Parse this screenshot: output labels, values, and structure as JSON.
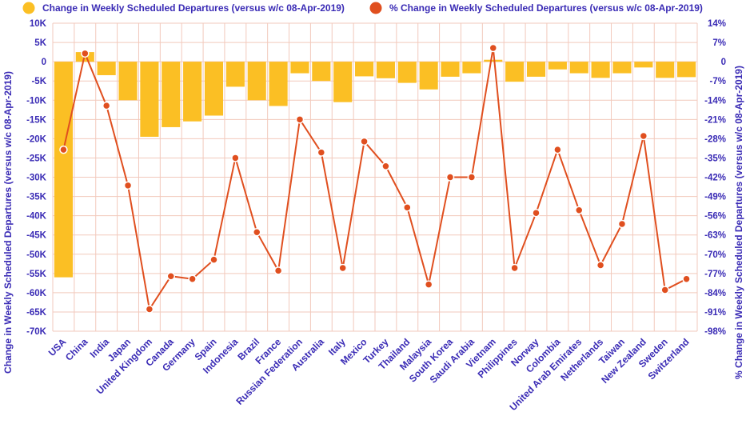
{
  "chart_data": {
    "type": "bar+line",
    "categories": [
      "USA",
      "China",
      "India",
      "Japan",
      "United Kingdom",
      "Canada",
      "Germany",
      "Spain",
      "Indonesia",
      "Brazil",
      "France",
      "Russian Federation",
      "Australia",
      "Italy",
      "Mexico",
      "Turkey",
      "Thailand",
      "Malaysia",
      "South Korea",
      "Saudi Arabia",
      "Vietnam",
      "Philippines",
      "Norway",
      "Colombia",
      "United Arab Emirates",
      "Netherlands",
      "Taiwan",
      "New Zealand",
      "Sweden",
      "Switzerland"
    ],
    "series": [
      {
        "name": "Change in Weekly Scheduled Departures (versus w/c 08-Apr-2019)",
        "type": "bar",
        "axis": "left",
        "color": "#fbbf24",
        "values": [
          -56000,
          2500,
          -3500,
          -10000,
          -19500,
          -17000,
          -15500,
          -14000,
          -6500,
          -10000,
          -11500,
          -3000,
          -5000,
          -10500,
          -3800,
          -4300,
          -5500,
          -7200,
          -3900,
          -3000,
          500,
          -5200,
          -3900,
          -2000,
          -3000,
          -4200,
          -3000,
          -1500,
          -4200,
          -4000
        ]
      },
      {
        "name": "% Change in Weekly Scheduled Departures (versus w/c 08-Apr-2019)",
        "type": "line",
        "axis": "right",
        "color": "#e04f1f",
        "values": [
          -32,
          3,
          -16,
          -45,
          -90,
          -78,
          -79,
          -72,
          -35,
          -62,
          -76,
          -21,
          -33,
          -75,
          -29,
          -38,
          -53,
          -81,
          -42,
          -42,
          5,
          -75,
          -55,
          -32,
          -54,
          -74,
          -59,
          -27,
          -83,
          -79
        ]
      }
    ],
    "ylabel": "Change in Weekly Scheduled Departures (versus w/c 08-Apr-2019)",
    "y2label": "% Change in Weekly Scheduled Departures (versus w/c 08-Apr-2019)",
    "ylim": [
      -70000,
      10000
    ],
    "y2lim": [
      -98,
      14
    ],
    "left_ticks": [
      "10K",
      "5K",
      "0",
      "-5K",
      "-10K",
      "-15K",
      "-20K",
      "-25K",
      "-30K",
      "-35K",
      "-40K",
      "-45K",
      "-50K",
      "-55K",
      "-60K",
      "-65K",
      "-70K"
    ],
    "right_ticks": [
      "14%",
      "7%",
      "0",
      "-7%",
      "-14%",
      "-21%",
      "-28%",
      "-35%",
      "-42%",
      "-49%",
      "-56%",
      "-63%",
      "-70%",
      "-77%",
      "-84%",
      "-91%",
      "-98%"
    ],
    "grid": true,
    "legend_position": "top"
  }
}
